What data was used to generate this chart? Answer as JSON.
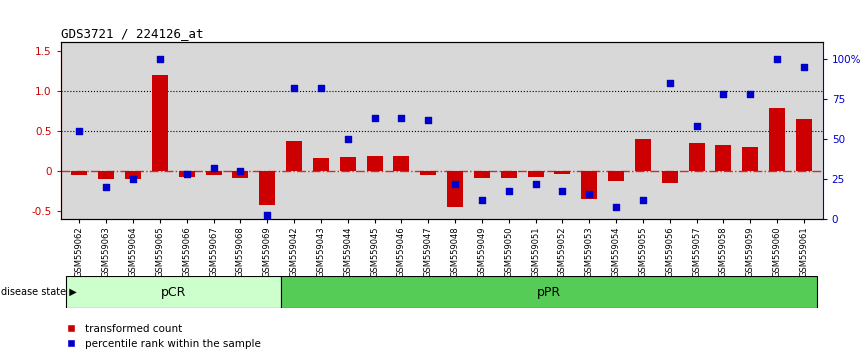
{
  "title": "GDS3721 / 224126_at",
  "samples": [
    "GSM559062",
    "GSM559063",
    "GSM559064",
    "GSM559065",
    "GSM559066",
    "GSM559067",
    "GSM559068",
    "GSM559069",
    "GSM559042",
    "GSM559043",
    "GSM559044",
    "GSM559045",
    "GSM559046",
    "GSM559047",
    "GSM559048",
    "GSM559049",
    "GSM559050",
    "GSM559051",
    "GSM559052",
    "GSM559053",
    "GSM559054",
    "GSM559055",
    "GSM559056",
    "GSM559057",
    "GSM559058",
    "GSM559059",
    "GSM559060",
    "GSM559061"
  ],
  "bar_values": [
    -0.05,
    -0.1,
    -0.1,
    1.2,
    -0.07,
    -0.05,
    -0.08,
    -0.42,
    0.38,
    0.17,
    0.18,
    0.19,
    0.19,
    -0.05,
    -0.45,
    -0.08,
    -0.08,
    -0.07,
    -0.03,
    -0.35,
    -0.12,
    0.4,
    -0.15,
    0.35,
    0.32,
    0.3,
    0.78,
    0.65
  ],
  "dot_values_pct": [
    55,
    20,
    25,
    100,
    28,
    32,
    30,
    3,
    82,
    82,
    50,
    63,
    63,
    62,
    22,
    12,
    18,
    22,
    18,
    16,
    8,
    12,
    85,
    58,
    78,
    78,
    100,
    95
  ],
  "pCR_count": 8,
  "pPR_count": 20,
  "bar_color": "#cc0000",
  "dot_color": "#0000cc",
  "zero_line_color": "#cc0000",
  "dotted_line_color": "black",
  "ylim_left": [
    -0.6,
    1.6
  ],
  "ylim_right": [
    0,
    110
  ],
  "yticks_left": [
    -0.5,
    0.0,
    0.5,
    1.0,
    1.5
  ],
  "yticks_right": [
    0,
    25,
    50,
    75,
    100
  ],
  "ytick_labels_right": [
    "0",
    "25",
    "50",
    "75",
    "100%"
  ],
  "hline_values": [
    1.0,
    0.5
  ],
  "pCR_light_color": "#ccffcc",
  "pPR_green_color": "#55cc55",
  "disease_state_label": "disease state",
  "legend_bar_label": "transformed count",
  "legend_dot_label": "percentile rank within the sample",
  "bg_color": "#d8d8d8",
  "title_fontsize": 9
}
